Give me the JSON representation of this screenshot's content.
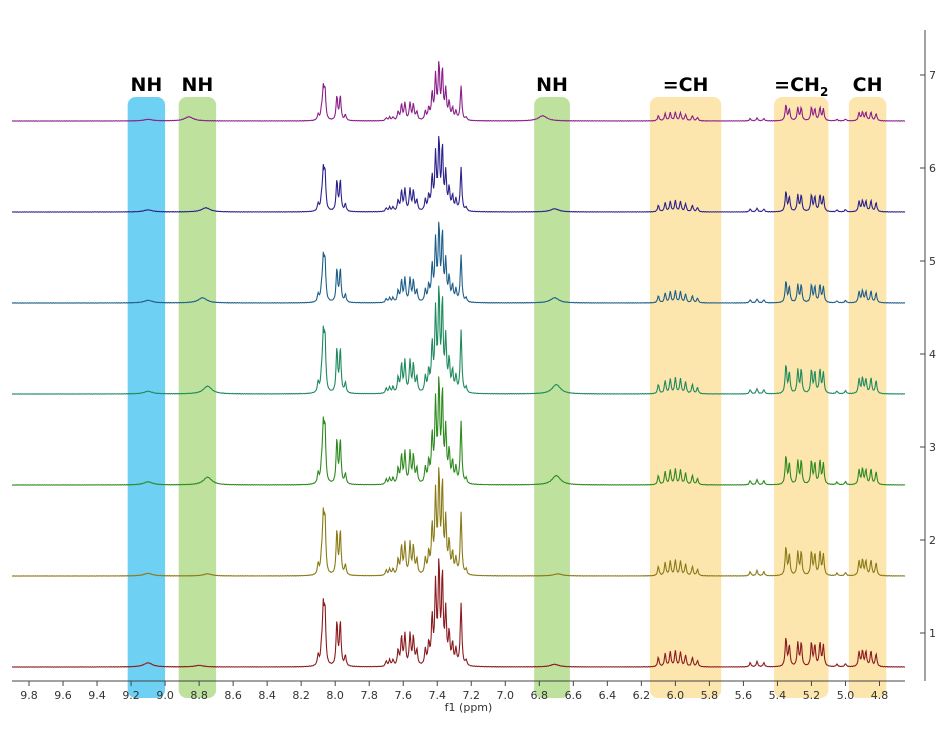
{
  "chart_data": {
    "type": "line",
    "title": "",
    "xlabel": "f1 (ppm)",
    "ylabel": "",
    "x_reversed": true,
    "xlim": [
      9.9,
      4.65
    ],
    "x_ticks": [
      9.8,
      9.6,
      9.4,
      9.2,
      9.0,
      8.8,
      8.6,
      8.4,
      8.2,
      8.0,
      7.8,
      7.6,
      7.4,
      7.2,
      7.0,
      6.8,
      6.6,
      6.4,
      6.2,
      6.0,
      5.8,
      5.6,
      5.4,
      5.2,
      5.0,
      4.8
    ],
    "x_tick_labels": [
      "9.8",
      "9.6",
      "9.4",
      "9.2",
      "9.0",
      "8.8",
      "8.6",
      "8.4",
      "8.2",
      "8.0",
      "7.8",
      "7.6",
      "7.4",
      "7.2",
      "7.0",
      "6.8",
      "6.6",
      "6.4",
      "6.2",
      "6.0",
      "5.8",
      "5.6",
      "5.4",
      "5.2",
      "5.0",
      "4.8"
    ],
    "y_ticks": [
      1,
      2,
      3,
      4,
      5,
      6,
      7
    ],
    "y_tick_labels": [
      "1",
      "2",
      "3",
      "4",
      "5",
      "6",
      "7"
    ],
    "y_axis_side": "right",
    "grid": false,
    "legend": "none",
    "highlight_regions": [
      {
        "label": "NH",
        "from": 9.22,
        "to": 9.0,
        "color": "#55c8f0"
      },
      {
        "label": "NH",
        "from": 8.92,
        "to": 8.7,
        "color": "#b3dc8c"
      },
      {
        "label": "NH",
        "from": 6.83,
        "to": 6.62,
        "color": "#b3dc8c"
      },
      {
        "label": "=CH",
        "from": 6.15,
        "to": 5.73,
        "color": "#fde2a0"
      },
      {
        "label": "=CH",
        "sub": "2",
        "from": 5.42,
        "to": 5.1,
        "color": "#fde2a0"
      },
      {
        "label": "CH",
        "from": 4.98,
        "to": 4.76,
        "color": "#fde2a0"
      }
    ],
    "series": [
      {
        "trace": 1,
        "color": "#8a1b1e",
        "nh_peaks": [
          [
            9.1,
            0.08
          ],
          [
            8.8,
            0.03
          ],
          [
            6.71,
            0.05
          ]
        ],
        "scale": 1.0
      },
      {
        "trace": 2,
        "color": "#8a7a17",
        "nh_peaks": [
          [
            9.1,
            0.05
          ],
          [
            8.75,
            0.04
          ],
          [
            6.69,
            0.04
          ]
        ],
        "scale": 1.0
      },
      {
        "trace": 3,
        "color": "#2e8a1e",
        "nh_peaks": [
          [
            9.1,
            0.06
          ],
          [
            8.75,
            0.15
          ],
          [
            6.7,
            0.18
          ]
        ],
        "scale": 1.0
      },
      {
        "trace": 4,
        "color": "#1e8a5e",
        "nh_peaks": [
          [
            9.1,
            0.05
          ],
          [
            8.75,
            0.15
          ],
          [
            6.7,
            0.18
          ]
        ],
        "scale": 1.0
      },
      {
        "trace": 5,
        "color": "#1e5e8a",
        "nh_peaks": [
          [
            9.1,
            0.05
          ],
          [
            8.78,
            0.1
          ],
          [
            6.71,
            0.1
          ]
        ],
        "scale": 0.75
      },
      {
        "trace": 6,
        "color": "#2a228a",
        "nh_peaks": [
          [
            9.1,
            0.04
          ],
          [
            8.76,
            0.08
          ],
          [
            6.71,
            0.06
          ]
        ],
        "scale": 0.7
      },
      {
        "trace": 7,
        "color": "#8a1e8a",
        "nh_peaks": [
          [
            9.1,
            0.03
          ],
          [
            8.86,
            0.08
          ],
          [
            6.78,
            0.1
          ]
        ],
        "scale": 0.55
      }
    ],
    "common_peaks": [
      [
        8.07,
        1.0
      ],
      [
        8.06,
        1.0
      ],
      [
        7.99,
        0.85
      ],
      [
        7.97,
        0.85
      ],
      [
        8.1,
        0.2
      ],
      [
        8.08,
        0.3
      ],
      [
        7.94,
        0.2
      ],
      [
        7.63,
        0.3
      ],
      [
        7.61,
        0.55
      ],
      [
        7.59,
        0.6
      ],
      [
        7.56,
        0.6
      ],
      [
        7.54,
        0.55
      ],
      [
        7.52,
        0.3
      ],
      [
        7.7,
        0.1
      ],
      [
        7.68,
        0.12
      ],
      [
        7.66,
        0.12
      ],
      [
        7.47,
        0.3
      ],
      [
        7.45,
        0.4
      ],
      [
        7.43,
        0.9
      ],
      [
        7.41,
        1.5
      ],
      [
        7.39,
        1.9
      ],
      [
        7.37,
        1.7
      ],
      [
        7.35,
        1.0
      ],
      [
        7.33,
        0.6
      ],
      [
        7.31,
        0.4
      ],
      [
        7.29,
        0.3
      ],
      [
        7.26,
        1.2
      ],
      [
        7.23,
        0.1
      ],
      [
        6.1,
        0.18
      ],
      [
        6.06,
        0.25
      ],
      [
        6.03,
        0.28
      ],
      [
        6.0,
        0.3
      ],
      [
        5.97,
        0.28
      ],
      [
        5.94,
        0.22
      ],
      [
        5.9,
        0.18
      ],
      [
        5.87,
        0.12
      ],
      [
        5.56,
        0.08
      ],
      [
        5.52,
        0.1
      ],
      [
        5.48,
        0.08
      ],
      [
        5.35,
        0.55
      ],
      [
        5.33,
        0.4
      ],
      [
        5.28,
        0.45
      ],
      [
        5.26,
        0.45
      ],
      [
        5.2,
        0.45
      ],
      [
        5.18,
        0.4
      ],
      [
        5.15,
        0.45
      ],
      [
        5.13,
        0.4
      ],
      [
        5.05,
        0.05
      ],
      [
        5.0,
        0.06
      ],
      [
        4.92,
        0.28
      ],
      [
        4.9,
        0.3
      ],
      [
        4.88,
        0.28
      ],
      [
        4.85,
        0.3
      ],
      [
        4.82,
        0.25
      ]
    ]
  }
}
